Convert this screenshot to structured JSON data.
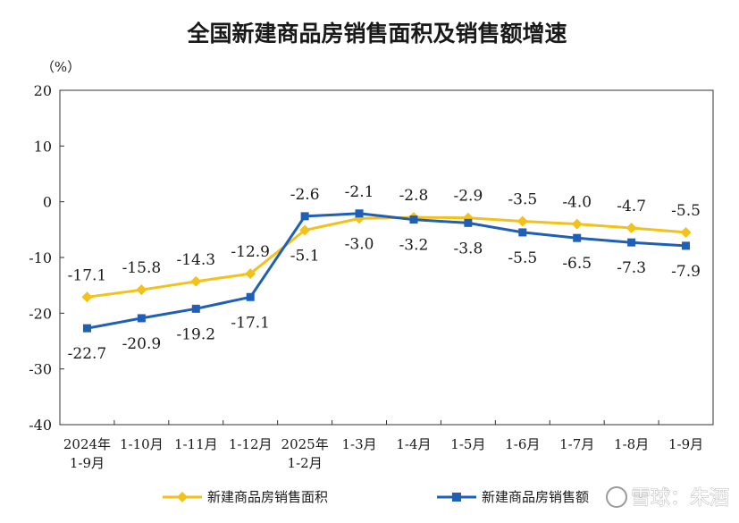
{
  "chart_data": {
    "type": "line",
    "title": "全国新建商品房销售面积及销售额增速",
    "unit_label": "（%）",
    "ylim": [
      -40,
      20
    ],
    "yticks": [
      20,
      10,
      0,
      -10,
      -20,
      -30,
      -40
    ],
    "grid": false,
    "legend_position": "bottom",
    "categories": [
      [
        "2024年",
        "1-9月"
      ],
      [
        "1-10月"
      ],
      [
        "1-11月"
      ],
      [
        "1-12月"
      ],
      [
        "2025年",
        "1-2月"
      ],
      [
        "1-3月"
      ],
      [
        "1-4月"
      ],
      [
        "1-5月"
      ],
      [
        "1-6月"
      ],
      [
        "1-7月"
      ],
      [
        "1-8月"
      ],
      [
        "1-9月"
      ]
    ],
    "series": [
      {
        "name": "新建商品房销售面积",
        "color": "#F2C21B",
        "marker": "diamond",
        "values": [
          -17.1,
          -15.8,
          -14.3,
          -12.9,
          -5.1,
          -3.0,
          -2.8,
          -2.9,
          -3.5,
          -4.0,
          -4.7,
          -5.5
        ],
        "labels": [
          "-17.1",
          "-15.8",
          "-14.3",
          "-12.9",
          "-5.1",
          "-3.0",
          "-2.8",
          "-2.9",
          "-3.5",
          "-4.0",
          "-4.7",
          "-5.5"
        ]
      },
      {
        "name": "新建商品房销售额",
        "color": "#1F5FB8",
        "marker": "square",
        "values": [
          -22.7,
          -20.9,
          -19.2,
          -17.1,
          -2.6,
          -2.1,
          -3.2,
          -3.8,
          -5.5,
          -6.5,
          -7.3,
          -7.9
        ],
        "labels": [
          "-22.7",
          "-20.9",
          "-19.2",
          "-17.1",
          "-2.6",
          "-2.1",
          "-3.2",
          "-3.8",
          "-5.5",
          "-6.5",
          "-7.3",
          "-7.9"
        ]
      }
    ]
  },
  "legend": {
    "items": [
      "新建商品房销售面积",
      "新建商品房销售额"
    ]
  },
  "watermark": {
    "text": "雪球：朱酒"
  }
}
